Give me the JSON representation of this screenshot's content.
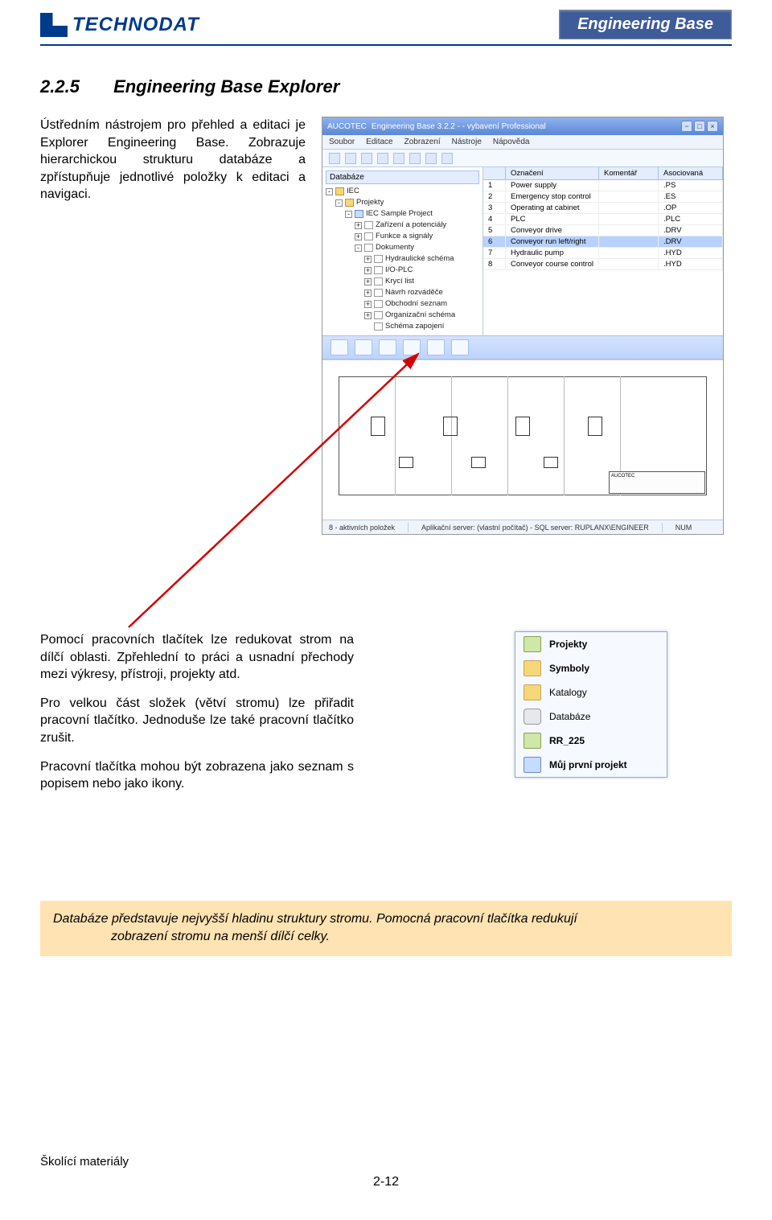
{
  "header": {
    "logo_text": "TECHNODAT",
    "badge": "Engineering Base"
  },
  "section": {
    "number": "2.2.5",
    "title": "Engineering Base Explorer"
  },
  "intro": {
    "p1": "Ústředním nástrojem pro přehled a editaci je Explorer Engineering Base. Zobrazuje hierarchickou strukturu databáze a zpřístupňuje jednotlivé položky k editaci a navigaci."
  },
  "screenshot": {
    "title_prefix": "AUCOTEC",
    "title": "Engineering Base 3.2.2 - - vybavení Professional",
    "menu": [
      "Soubor",
      "Editace",
      "Zobrazení",
      "Nástroje",
      "Nápověda"
    ],
    "tree_header": "Databáze",
    "tree": [
      {
        "lvl": 0,
        "pm": "-",
        "icon": "folder",
        "label": "IEC"
      },
      {
        "lvl": 1,
        "pm": "-",
        "icon": "folder",
        "label": "Projekty"
      },
      {
        "lvl": 2,
        "pm": "-",
        "icon": "blue",
        "label": "IEC Sample Project"
      },
      {
        "lvl": 3,
        "pm": "+",
        "icon": "page",
        "label": "Zařízení a potenciály"
      },
      {
        "lvl": 3,
        "pm": "+",
        "icon": "page",
        "label": "Funkce a signály"
      },
      {
        "lvl": 3,
        "pm": "-",
        "icon": "page",
        "label": "Dokumenty"
      },
      {
        "lvl": 4,
        "pm": "+",
        "icon": "page",
        "label": "Hydraulické schéma"
      },
      {
        "lvl": 4,
        "pm": "+",
        "icon": "page",
        "label": "I/O-PLC"
      },
      {
        "lvl": 4,
        "pm": "+",
        "icon": "page",
        "label": "Krycí list"
      },
      {
        "lvl": 4,
        "pm": "+",
        "icon": "page",
        "label": "Návrh rozváděče"
      },
      {
        "lvl": 4,
        "pm": "+",
        "icon": "page",
        "label": "Obchodní seznam"
      },
      {
        "lvl": 4,
        "pm": "+",
        "icon": "page",
        "label": "Organizační schéma"
      },
      {
        "lvl": 4,
        "pm": "",
        "icon": "page",
        "label": "Schéma zapojení"
      }
    ],
    "list_headers": [
      "",
      "Označení",
      "Komentář",
      "Asociovaná"
    ],
    "list_rows": [
      {
        "n": "1",
        "label": "Power supply",
        "ext": ".PS"
      },
      {
        "n": "2",
        "label": "Emergency stop control",
        "ext": ".ES"
      },
      {
        "n": "3",
        "label": "Operating at cabinet",
        "ext": ".OP"
      },
      {
        "n": "4",
        "label": "PLC",
        "ext": ".PLC"
      },
      {
        "n": "5",
        "label": "Conveyor drive",
        "ext": ".DRV"
      },
      {
        "n": "6",
        "label": "Conveyor run left/right",
        "ext": ".DRV",
        "sel": true
      },
      {
        "n": "7",
        "label": "Hydraulic pump",
        "ext": ".HYD"
      },
      {
        "n": "8",
        "label": "Conveyor course control",
        "ext": ".HYD"
      }
    ],
    "titleblock": "AUCOTEC",
    "status": {
      "left": "8 - aktivních položek",
      "mid": "Aplikační server: (vlastní počítač) - SQL server: RUPLANX\\ENGINEER",
      "right": "NUM"
    }
  },
  "mid": {
    "p1": "Pomocí pracovních tlačítek lze redukovat strom na dílčí oblasti. Zpřehlední to práci a usnadní přechody mezi výkresy, přístroji, projekty atd.",
    "p2": "Pro velkou část složek (větví stromu) lze přiřadit pracovní tlačítko. Jednoduše lze také pracovní tlačítko zrušit.",
    "p3": "Pracovní tlačítka mohou být zobrazena jako seznam s popisem nebo jako ikony."
  },
  "quickpanel": {
    "items": [
      {
        "icon": "green",
        "label": "Projekty",
        "bold": true
      },
      {
        "icon": "folder",
        "label": "Symboly",
        "bold": true
      },
      {
        "icon": "folder",
        "label": "Katalogy",
        "bold": false
      },
      {
        "icon": "db",
        "label": "Databáze",
        "bold": false
      },
      {
        "icon": "green",
        "label": "RR_225",
        "bold": true
      },
      {
        "icon": "blue",
        "label": "Můj první projekt",
        "bold": true
      }
    ]
  },
  "callout": {
    "line1": "Databáze představuje nejvyšší hladinu struktury stromu. Pomocná pracovní tlačítka redukují",
    "line2": "zobrazení stromu na menší dílčí celky."
  },
  "footer": {
    "left": "Školící materiály",
    "center": "2-12"
  }
}
